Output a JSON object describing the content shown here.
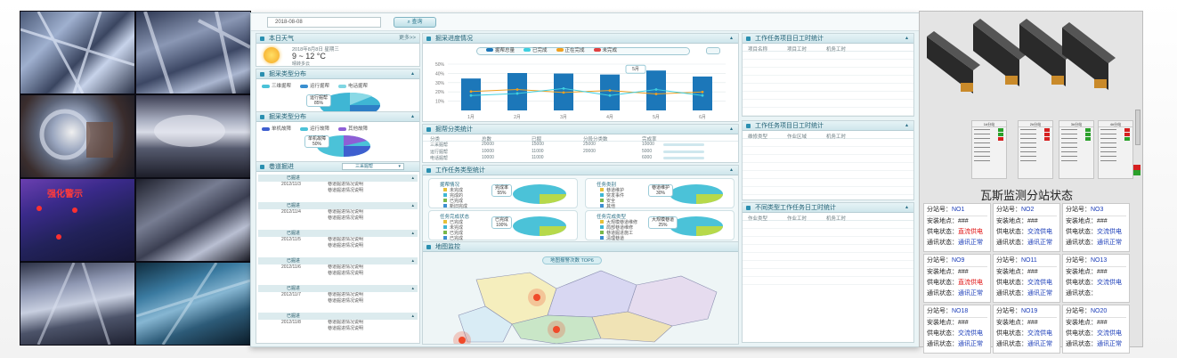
{
  "cameras": {
    "warning_label": "强化警示"
  },
  "dashboard": {
    "date_value": "2018-08-08",
    "query_label": "查询",
    "weather": {
      "title": "本日天气",
      "more": "更多>>",
      "date": "2018年8月8日 星期三",
      "temp": "9 ~ 12 °C",
      "desc": "晴转多云"
    },
    "pie1": {
      "title": "掘采类型分布",
      "legend": [
        "三维掘帮",
        "运行掘帮",
        "电话掘帮"
      ],
      "tooltip_title": "运行掘帮",
      "tooltip_value": "85%"
    },
    "pie2": {
      "title": "掘采类型分布",
      "legend": [
        "单机故障",
        "运行故障",
        "其他故障"
      ],
      "tooltip_title": "单机故障",
      "tooltip_value": "50%"
    },
    "roadway": {
      "title": "巷道掘进",
      "selector": "三采掘帮",
      "blocks": [
        {
          "name": "已掘进",
          "date": "2012/11/3",
          "lines": [
            "巷道掘进情况说明",
            "巷道掘进情况说明"
          ]
        },
        {
          "name": "已掘进",
          "date": "2012/11/4",
          "lines": [
            "巷道掘进情况说明",
            "巷道掘进情况说明"
          ]
        },
        {
          "name": "已掘进",
          "date": "2012/11/5",
          "lines": [
            "巷道掘进情况说明",
            "巷道掘进情况说明"
          ]
        },
        {
          "name": "已掘进",
          "date": "2012/11/6",
          "lines": [
            "巷道掘进情况说明",
            "巷道掘进情况说明"
          ]
        },
        {
          "name": "已掘进",
          "date": "2012/11/7",
          "lines": [
            "巷道掘进情况说明",
            "巷道掘进情况说明"
          ]
        },
        {
          "name": "已掘进",
          "date": "2012/11/8",
          "lines": [
            "巷道掘进情况说明",
            "巷道掘进情况说明"
          ]
        }
      ]
    },
    "bar_chart": {
      "title": "掘采进度情况",
      "legend": [
        "掘帮总量",
        "已完成",
        "正在完成",
        "未完成"
      ],
      "yticks": [
        "50%",
        "40%",
        "30%",
        "20%",
        "10%"
      ],
      "xticks": [
        "1月",
        "2月",
        "3月",
        "4月",
        "5月",
        "6月"
      ],
      "bars": [
        0.64,
        0.75,
        0.74,
        0.72,
        0.8,
        0.68
      ],
      "line_a": [
        0.38,
        0.42,
        0.36,
        0.4,
        0.33,
        0.37
      ],
      "line_b": [
        0.3,
        0.34,
        0.44,
        0.3,
        0.42,
        0.3
      ],
      "tooltip": "5月"
    },
    "class_table": {
      "title": "掘帮分类统计",
      "headers": [
        "分类",
        "总数",
        "已掘",
        "分段分类数",
        "完成率"
      ],
      "rows": [
        [
          "三采掘帮",
          "20000",
          "15000",
          "25000",
          "10000"
        ],
        [
          "运行掘帮",
          "10000",
          "11000",
          "20000",
          "5000"
        ],
        [
          "电话掘帮",
          "10000",
          "11000",
          "",
          "6000"
        ]
      ]
    },
    "task_panel": {
      "title": "工作任务类型统计",
      "groups": [
        {
          "title": "掘帮情况",
          "items": [
            "未完成",
            "完成的",
            "已完成",
            "新旧完成"
          ],
          "badge": "完成率",
          "value": "55%"
        },
        {
          "title": "任务类别",
          "items": [
            "巷道维护",
            "突发事件",
            "安全",
            "其他"
          ],
          "badge": "巷道维护",
          "value": "30%"
        },
        {
          "title": "任务完成状态",
          "items": [
            "已完成",
            "未完成",
            "已完成",
            "已完成"
          ],
          "badge": "已完成",
          "value": "100%"
        },
        {
          "title": "任务完成类型",
          "items": [
            "大规模巷道维修",
            "局部巷道维修",
            "巷道掘进施工",
            "清理巷道"
          ],
          "badge": "大规模巷道",
          "value": "25%"
        }
      ]
    },
    "map": {
      "title": "地图监控",
      "banner": "地图报警次数 TOP6"
    },
    "stat_tables": [
      {
        "title": "工作任务项目日工时统计",
        "headers": [
          "项目名称",
          "项目工时",
          "机务工时"
        ]
      },
      {
        "title": "工作任务项目日工时统计",
        "headers": [
          "维修类型",
          "作业区域",
          "机务工时"
        ]
      },
      {
        "title": "不同类型工作任务日工时统计",
        "headers": [
          "作业类型",
          "作业工时",
          "机务工时"
        ]
      }
    ]
  },
  "gas": {
    "title": "瓦斯监测分站状态",
    "boxes": [
      "1#分站",
      "2#分站",
      "3#分站",
      "4#分站"
    ],
    "stations": [
      {
        "no": "NO1",
        "addr": "###",
        "power": "直流供电",
        "power_red": true,
        "comm": "通讯正常"
      },
      {
        "no": "NO2",
        "addr": "###",
        "power": "交流供电",
        "power_red": false,
        "comm": "通讯正常"
      },
      {
        "no": "NO3",
        "addr": "###",
        "power": "交流供电",
        "power_red": false,
        "comm": "通讯正常"
      },
      {
        "no": "NO9",
        "addr": "###",
        "power": "直流供电",
        "power_red": true,
        "comm": "通讯正常"
      },
      {
        "no": "NO11",
        "addr": "###",
        "power": "交流供电",
        "power_red": false,
        "comm": "通讯正常"
      },
      {
        "no": "NO13",
        "addr": "###",
        "power": "交流供电",
        "power_red": false,
        "comm": ""
      },
      {
        "no": "NO18",
        "addr": "###",
        "power": "交流供电",
        "power_red": false,
        "comm": "通讯正常"
      },
      {
        "no": "NO19",
        "addr": "###",
        "power": "交流供电",
        "power_red": false,
        "comm": "通讯正常"
      },
      {
        "no": "NO20",
        "addr": "###",
        "power": "交流供电",
        "power_red": false,
        "comm": "通讯正常"
      }
    ],
    "labels": {
      "station": "分站号：",
      "addr": "安装地点：",
      "power": "供电状态：",
      "comm": "通讯状态："
    }
  }
}
